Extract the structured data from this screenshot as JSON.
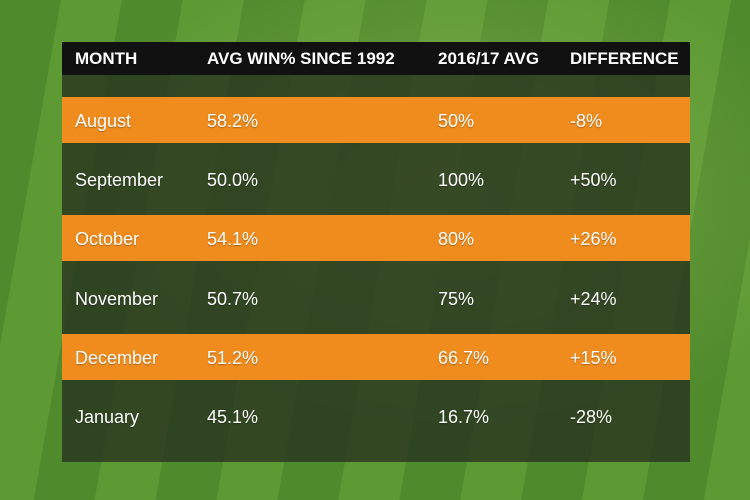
{
  "table": {
    "header": [
      "MONTH",
      "AVG WIN% SINCE 1992",
      "2016/17 AVG",
      "DIFFERENCE"
    ],
    "rows": [
      [
        "August",
        "58.2%",
        "50%",
        "-8%"
      ],
      [
        "September",
        "50.0%",
        "100%",
        "+50%"
      ],
      [
        "October",
        "54.1%",
        "80%",
        "+26%"
      ],
      [
        "November",
        "50.7%",
        "75%",
        "+24%"
      ],
      [
        "December",
        "51.2%",
        "66.7%",
        "+15%"
      ],
      [
        "January",
        "45.1%",
        "16.7%",
        "-28%"
      ]
    ]
  }
}
